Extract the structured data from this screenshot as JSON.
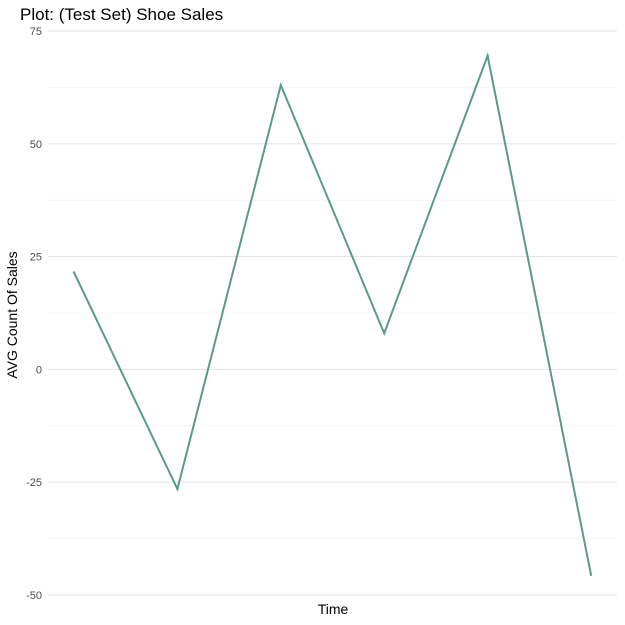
{
  "chart_data": {
    "type": "line",
    "title": "Plot: (Test Set) Shoe Sales",
    "xlabel": "Time",
    "ylabel": "AVG Count Of Sales",
    "ylim": [
      -50,
      75
    ],
    "yticks": [
      -50,
      -25,
      0,
      25,
      50,
      75
    ],
    "ytick_labels": [
      "-50",
      "-25",
      "0",
      "25",
      "50",
      "75"
    ],
    "grid": true,
    "x_tick_labels_shown": false,
    "line_color": "#5a9b83",
    "series": [
      {
        "values": [
          21.5,
          -26.5,
          63,
          8,
          69.5,
          -45.5
        ]
      }
    ]
  }
}
